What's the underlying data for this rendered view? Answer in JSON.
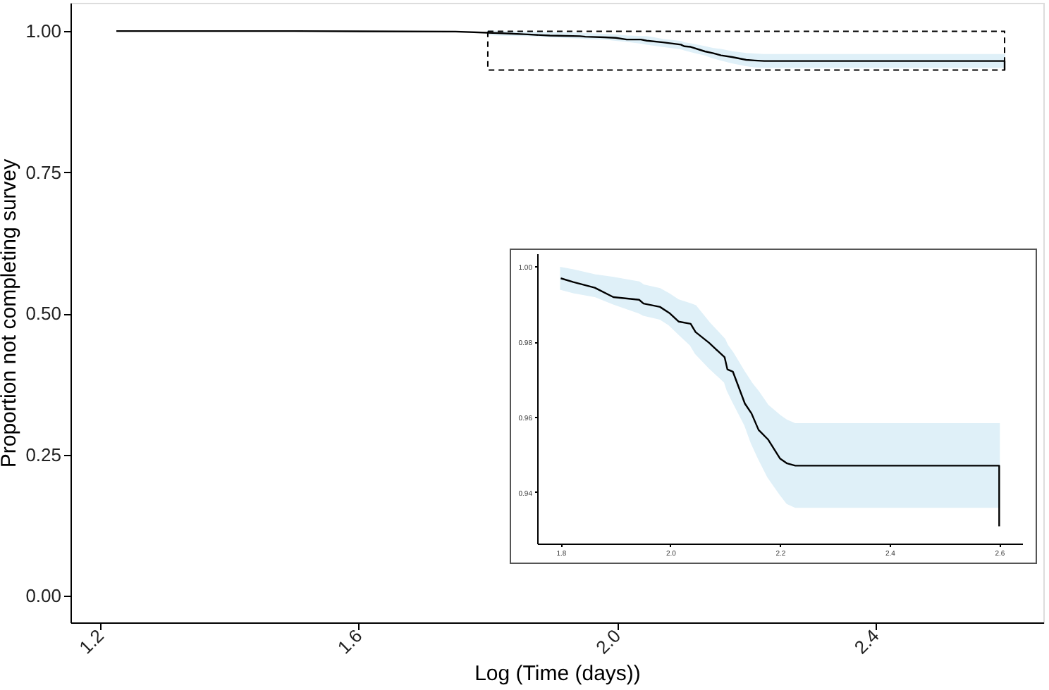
{
  "chart_data": [
    {
      "type": "line",
      "xlabel": "Log (Time (days))",
      "ylabel": "Proportion not completing survey",
      "xlim": [
        1.154,
        2.66
      ],
      "ylim": [
        -0.047,
        1.05
      ],
      "xticks": [
        1.2,
        1.6,
        {
          "value": 2.0,
          "label": "2.0"
        },
        2.4
      ],
      "yticks": [
        {
          "value": 0,
          "label": "0.00"
        },
        {
          "value": 0.25,
          "label": "0.25"
        },
        {
          "value": 0.5,
          "label": "0.50"
        },
        {
          "value": 0.75,
          "label": "0.75"
        },
        {
          "value": 1,
          "label": "1.00"
        }
      ],
      "series": [
        {
          "color": "#000000",
          "x": [
            1.225,
            1.5,
            1.75,
            1.8,
            1.823,
            1.862,
            1.896,
            1.943,
            1.951,
            1.981,
            1.998,
            2.015,
            2.037,
            2.046,
            2.071,
            2.099,
            2.104,
            2.114,
            2.136,
            2.148,
            2.161,
            2.178,
            2.2,
            2.213,
            2.228,
            2.6,
            2.6
          ],
          "values": [
            1.0,
            1.0,
            0.999,
            0.997,
            0.996,
            0.994,
            0.992,
            0.991,
            0.99,
            0.989,
            0.988,
            0.985,
            0.985,
            0.983,
            0.98,
            0.976,
            0.973,
            0.972,
            0.964,
            0.961,
            0.957,
            0.954,
            0.949,
            0.948,
            0.947,
            0.947,
            0.931
          ],
          "lower": [
            null,
            null,
            null,
            0.994,
            0.993,
            0.992,
            0.99,
            0.988,
            0.987,
            0.986,
            0.984,
            0.982,
            0.979,
            0.977,
            0.973,
            0.969,
            0.967,
            0.964,
            0.958,
            0.953,
            0.949,
            0.944,
            0.939,
            0.937,
            0.936,
            0.936,
            null
          ],
          "upper": [
            null,
            null,
            null,
            1.0,
            0.999,
            0.998,
            0.997,
            0.996,
            0.995,
            0.994,
            0.993,
            0.991,
            0.99,
            0.99,
            0.985,
            0.981,
            0.979,
            0.977,
            0.972,
            0.969,
            0.967,
            0.963,
            0.96,
            0.959,
            0.958,
            0.958,
            null
          ]
        }
      ]
    },
    {
      "type": "line",
      "xlim": [
        1.757,
        2.642
      ],
      "ylim": [
        0.9263,
        1.0034
      ],
      "xticks": [
        {
          "value": 1.8,
          "label": "1.8"
        },
        {
          "value": 2.0,
          "label": "2.0"
        },
        {
          "value": 2.2,
          "label": "2.2"
        },
        {
          "value": 2.4,
          "label": "2.4"
        },
        {
          "value": 2.6,
          "label": "2.6"
        }
      ],
      "yticks": [
        {
          "value": 0.94,
          "label": "0.94"
        },
        {
          "value": 0.96,
          "label": "0.96"
        },
        {
          "value": 0.98,
          "label": "0.98"
        },
        {
          "value": 1.0,
          "label": "1.00"
        }
      ],
      "series": [
        {
          "color": "#000000",
          "x": [
            1.8,
            1.823,
            1.862,
            1.896,
            1.943,
            1.951,
            1.981,
            1.998,
            2.015,
            2.037,
            2.046,
            2.071,
            2.099,
            2.104,
            2.114,
            2.136,
            2.148,
            2.161,
            2.178,
            2.2,
            2.213,
            2.228,
            2.6,
            2.6
          ],
          "values": [
            0.9968,
            0.9958,
            0.9943,
            0.9918,
            0.9911,
            0.9901,
            0.9892,
            0.9876,
            0.9853,
            0.9847,
            0.9825,
            0.9796,
            0.9758,
            0.9726,
            0.972,
            0.9635,
            0.9609,
            0.9565,
            0.954,
            0.9489,
            0.9476,
            0.947,
            0.947,
            0.9309
          ],
          "lower": [
            0.9939,
            0.993,
            0.992,
            0.99,
            0.9876,
            0.987,
            0.986,
            0.9844,
            0.982,
            0.979,
            0.9768,
            0.973,
            0.9692,
            0.967,
            0.964,
            0.9578,
            0.953,
            0.9489,
            0.944,
            0.9394,
            0.937,
            0.936,
            0.936,
            null
          ],
          "upper": [
            0.9996,
            0.999,
            0.9977,
            0.997,
            0.9958,
            0.995,
            0.994,
            0.9926,
            0.991,
            0.99,
            0.9895,
            0.985,
            0.9806,
            0.979,
            0.977,
            0.9717,
            0.969,
            0.9666,
            0.963,
            0.9603,
            0.959,
            0.9581,
            0.9581,
            null
          ]
        }
      ]
    }
  ]
}
